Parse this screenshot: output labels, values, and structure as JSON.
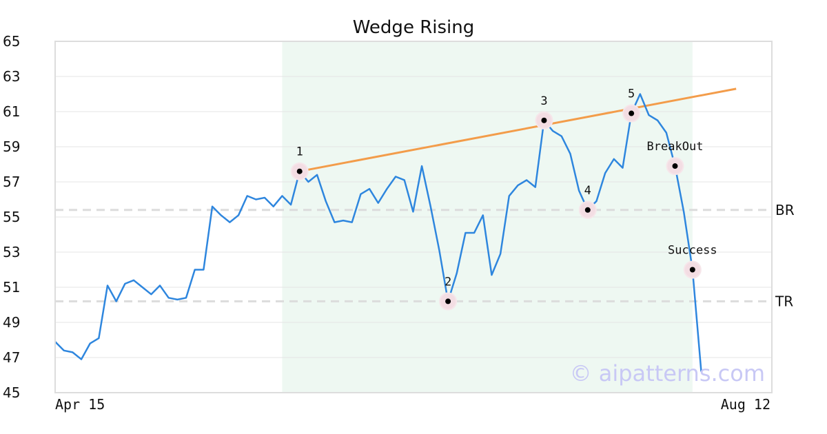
{
  "chart_data": {
    "type": "line",
    "title": "Wedge Rising",
    "xlabel": "",
    "ylabel": "",
    "x_start_label": "Apr 15",
    "x_end_label": "Aug 12",
    "ylim": [
      45,
      65
    ],
    "yticks": [
      "45",
      "47",
      "49",
      "51",
      "53",
      "55",
      "57",
      "59",
      "61",
      "63",
      "65"
    ],
    "grid": true,
    "series": [
      {
        "color": "#2e86de",
        "values": [
          47.9,
          47.4,
          47.3,
          46.9,
          47.8,
          48.1,
          51.1,
          50.2,
          51.2,
          51.4,
          51.0,
          50.6,
          51.1,
          50.4,
          50.3,
          50.4,
          52.0,
          52.0,
          55.6,
          55.1,
          54.7,
          55.1,
          56.2,
          56.0,
          56.1,
          55.6,
          56.2,
          55.7,
          57.6,
          57.0,
          57.4,
          55.9,
          54.7,
          54.8,
          54.7,
          56.3,
          56.6,
          55.8,
          56.6,
          57.3,
          57.1,
          55.3,
          57.9,
          55.6,
          53.1,
          50.2,
          51.8,
          54.1,
          54.1,
          55.1,
          51.7,
          52.9,
          56.2,
          56.8,
          57.1,
          56.7,
          60.5,
          59.9,
          59.6,
          58.6,
          56.5,
          55.4,
          55.9,
          57.5,
          58.3,
          57.8,
          60.9,
          62.0,
          60.8,
          60.5,
          59.8,
          57.9,
          55.3,
          52.0,
          46.2
        ]
      }
    ],
    "shaded_region": {
      "start_index": 26,
      "end_index": 73,
      "color": "#e8f5ee"
    },
    "trendline": {
      "color": "#f39c4a",
      "from": {
        "index": 28,
        "value": 57.6
      },
      "to": {
        "index": 78,
        "value": 62.3
      }
    },
    "reference_lines": [
      {
        "label": "BR",
        "value": 55.4
      },
      {
        "label": "TR",
        "value": 50.2
      }
    ],
    "annotations": [
      {
        "label": "1",
        "index": 28,
        "value": 57.6
      },
      {
        "label": "2",
        "index": 45,
        "value": 50.2
      },
      {
        "label": "3",
        "index": 56,
        "value": 60.5
      },
      {
        "label": "4",
        "index": 61,
        "value": 55.4
      },
      {
        "label": "5",
        "index": 66,
        "value": 60.9
      },
      {
        "label": "BreakOut",
        "index": 71,
        "value": 57.9
      },
      {
        "label": "Success",
        "index": 73,
        "value": 52.0
      }
    ],
    "watermark": "© aipatterns.com"
  }
}
